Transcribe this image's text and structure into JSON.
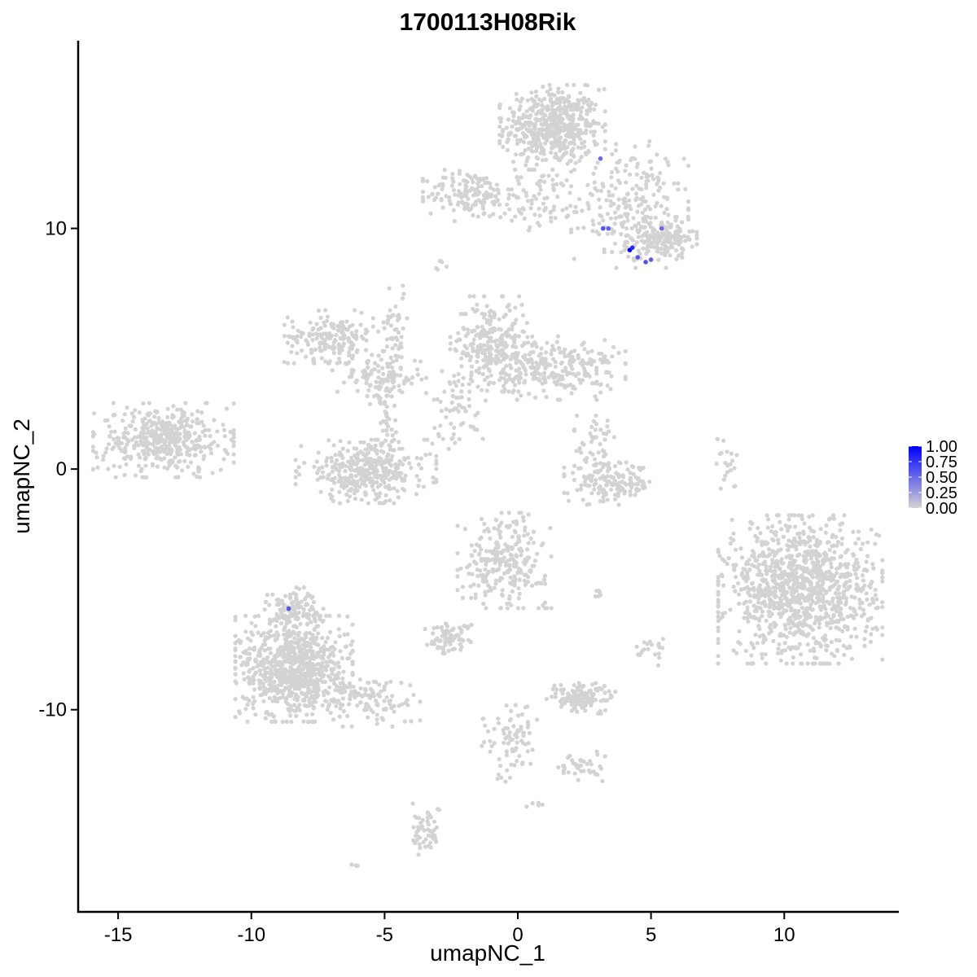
{
  "chart_data": {
    "type": "scatter",
    "title": "1700113H08Rik",
    "xlabel": "umapNC_1",
    "ylabel": "umapNC_2",
    "xlim": [
      -16.5,
      14.3
    ],
    "ylim": [
      -18.4,
      17.8
    ],
    "x_ticks": [
      -15,
      -10,
      -5,
      0,
      5,
      10
    ],
    "x_tick_labels": [
      "-15",
      "-10",
      "-5",
      "0",
      "5",
      "10"
    ],
    "y_ticks": [
      -10,
      0,
      10
    ],
    "y_tick_labels": [
      "-10",
      "0",
      "10"
    ],
    "grid": false,
    "legend_position": "right",
    "color_scale": {
      "low": "#d3d3d3",
      "high": "#0000ff",
      "range": [
        0,
        1
      ],
      "breaks": [
        0,
        0.25,
        0.5,
        0.75,
        1
      ],
      "break_labels": [
        "0.00",
        "0.25",
        "0.50",
        "0.75",
        "1.00"
      ]
    },
    "clusters": [
      {
        "cx": 1.3,
        "cy": 14.2,
        "sx": 0.9,
        "sy": 0.8,
        "n": 520
      },
      {
        "cx": 4.2,
        "cy": 11.0,
        "sx": 1.0,
        "sy": 1.2,
        "n": 220
      },
      {
        "cx": 5.4,
        "cy": 9.6,
        "sx": 0.6,
        "sy": 0.4,
        "n": 160
      },
      {
        "cx": -1.8,
        "cy": 11.4,
        "sx": 0.8,
        "sy": 0.5,
        "n": 150
      },
      {
        "cx": 0.9,
        "cy": 11.2,
        "sx": 0.8,
        "sy": 0.6,
        "n": 80
      },
      {
        "cx": -7.0,
        "cy": 5.5,
        "sx": 0.8,
        "sy": 0.5,
        "n": 180
      },
      {
        "cx": -5.2,
        "cy": 3.8,
        "sx": 0.8,
        "sy": 0.5,
        "n": 120
      },
      {
        "cx": -4.6,
        "cy": 6.0,
        "sx": 0.2,
        "sy": 1.0,
        "n": 45
      },
      {
        "cx": -1.0,
        "cy": 5.2,
        "sx": 0.7,
        "sy": 0.9,
        "n": 260
      },
      {
        "cx": 1.4,
        "cy": 4.2,
        "sx": 1.2,
        "sy": 0.6,
        "n": 260
      },
      {
        "cx": -2.2,
        "cy": 2.6,
        "sx": 0.5,
        "sy": 0.8,
        "n": 60
      },
      {
        "cx": -13.3,
        "cy": 1.2,
        "sx": 1.2,
        "sy": 0.7,
        "n": 440
      },
      {
        "cx": -5.7,
        "cy": -0.1,
        "sx": 1.2,
        "sy": 0.6,
        "n": 360
      },
      {
        "cx": -4.9,
        "cy": 1.8,
        "sx": 0.2,
        "sy": 0.8,
        "n": 40
      },
      {
        "cx": 3.5,
        "cy": -0.6,
        "sx": 0.8,
        "sy": 0.4,
        "n": 160
      },
      {
        "cx": 3.0,
        "cy": 0.9,
        "sx": 0.4,
        "sy": 0.6,
        "n": 50
      },
      {
        "cx": 10.6,
        "cy": -5.0,
        "sx": 1.4,
        "sy": 1.4,
        "n": 1100
      },
      {
        "cx": 7.9,
        "cy": 0.4,
        "sx": 0.2,
        "sy": 0.6,
        "n": 20
      },
      {
        "cx": -0.5,
        "cy": -3.8,
        "sx": 0.8,
        "sy": 0.9,
        "n": 260
      },
      {
        "cx": -8.4,
        "cy": -8.3,
        "sx": 1.0,
        "sy": 1.0,
        "n": 820
      },
      {
        "cx": -8.4,
        "cy": -5.8,
        "sx": 0.5,
        "sy": 0.4,
        "n": 120
      },
      {
        "cx": -5.6,
        "cy": -9.6,
        "sx": 0.9,
        "sy": 0.5,
        "n": 110
      },
      {
        "cx": -2.6,
        "cy": -7.0,
        "sx": 0.4,
        "sy": 0.3,
        "n": 80
      },
      {
        "cx": 2.4,
        "cy": -9.5,
        "sx": 0.6,
        "sy": 0.3,
        "n": 130
      },
      {
        "cx": -0.3,
        "cy": -11.3,
        "sx": 0.5,
        "sy": 0.8,
        "n": 80
      },
      {
        "cx": 2.4,
        "cy": -12.4,
        "sx": 0.4,
        "sy": 0.3,
        "n": 40
      },
      {
        "cx": -3.5,
        "cy": -15.0,
        "sx": 0.3,
        "sy": 0.5,
        "n": 50
      },
      {
        "cx": 5.1,
        "cy": -7.5,
        "sx": 0.3,
        "sy": 0.3,
        "n": 20
      },
      {
        "cx": 3.0,
        "cy": -5.2,
        "sx": 0.1,
        "sy": 0.1,
        "n": 6
      },
      {
        "cx": -2.7,
        "cy": 8.5,
        "sx": 0.2,
        "sy": 0.2,
        "n": 6
      },
      {
        "cx": 0.6,
        "cy": -13.9,
        "sx": 0.2,
        "sy": 0.1,
        "n": 5
      },
      {
        "cx": -6.0,
        "cy": -16.4,
        "sx": 0.15,
        "sy": 0.1,
        "n": 5
      }
    ],
    "highlighted_points": [
      {
        "x": 3.1,
        "y": 12.9,
        "value": 0.5
      },
      {
        "x": 3.2,
        "y": 10.0,
        "value": 0.6
      },
      {
        "x": 3.4,
        "y": 10.0,
        "value": 0.55
      },
      {
        "x": 5.4,
        "y": 10.0,
        "value": 0.5
      },
      {
        "x": 4.2,
        "y": 9.1,
        "value": 1.0
      },
      {
        "x": 4.3,
        "y": 9.2,
        "value": 0.8
      },
      {
        "x": 4.5,
        "y": 8.8,
        "value": 0.6
      },
      {
        "x": 4.8,
        "y": 8.6,
        "value": 0.6
      },
      {
        "x": 5.0,
        "y": 8.7,
        "value": 0.55
      },
      {
        "x": -8.6,
        "y": -5.8,
        "value": 0.6
      }
    ]
  }
}
